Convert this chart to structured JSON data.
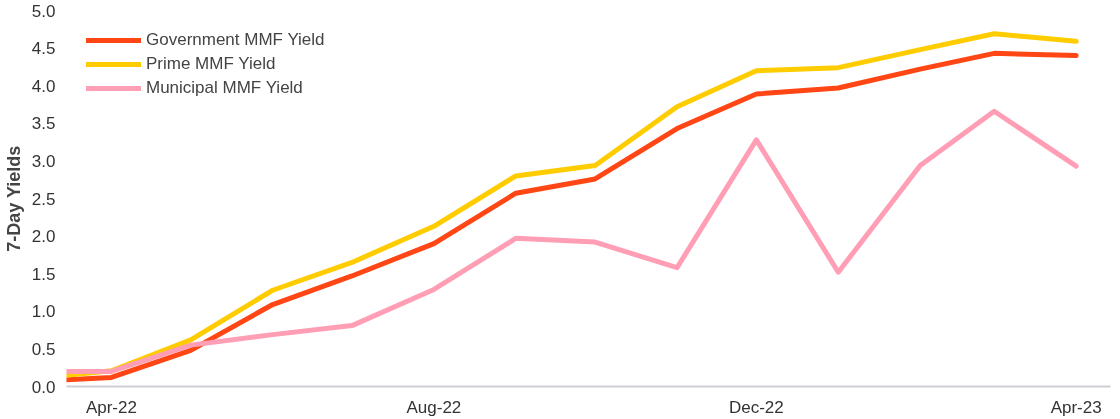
{
  "chart_data": {
    "type": "line",
    "ylabel": "7-Day Yields",
    "x": [
      "2022-03-15",
      "2022-04-01",
      "2022-05-01",
      "2022-06-01",
      "2022-07-01",
      "2022-08-01",
      "2022-09-01",
      "2022-10-01",
      "2022-11-01",
      "2022-12-01",
      "2023-01-01",
      "2023-02-01",
      "2023-03-01",
      "2023-04-01"
    ],
    "series": [
      {
        "name": "Government MMF Yield",
        "color": "#ff4614",
        "values": [
          0.09,
          0.12,
          0.48,
          1.09,
          1.47,
          1.9,
          2.57,
          2.76,
          3.43,
          3.89,
          3.97,
          4.22,
          4.43,
          4.4
        ]
      },
      {
        "name": "Prime MMF Yield",
        "color": "#ffcc00",
        "values": [
          0.15,
          0.21,
          0.62,
          1.28,
          1.65,
          2.13,
          2.8,
          2.94,
          3.72,
          4.2,
          4.24,
          4.48,
          4.69,
          4.59
        ]
      },
      {
        "name": "Municipal MMF Yield",
        "color": "#ff9eb4",
        "values": [
          0.2,
          0.2,
          0.55,
          0.69,
          0.81,
          1.29,
          1.97,
          1.92,
          1.58,
          3.28,
          1.52,
          2.94,
          3.66,
          2.93
        ]
      }
    ],
    "xlim": [
      "2022-03-15",
      "2023-04-14"
    ],
    "xticks": [
      {
        "value": "2022-04-01",
        "label": "Apr-22"
      },
      {
        "value": "2022-08-01",
        "label": "Aug-22"
      },
      {
        "value": "2022-12-01",
        "label": "Dec-22"
      },
      {
        "value": "2023-04-01",
        "label": "Apr-23"
      }
    ],
    "ylim": [
      0,
      5
    ],
    "yticks": [
      {
        "value": 0,
        "label": "0.0"
      },
      {
        "value": 0.5,
        "label": "0.5"
      },
      {
        "value": 1,
        "label": "1.0"
      },
      {
        "value": 1.5,
        "label": "1.5"
      },
      {
        "value": 2,
        "label": "2.0"
      },
      {
        "value": 2.5,
        "label": "2.5"
      },
      {
        "value": 3,
        "label": "3.0"
      },
      {
        "value": 3.5,
        "label": "3.5"
      },
      {
        "value": 4,
        "label": "4.0"
      },
      {
        "value": 4.5,
        "label": "4.5"
      },
      {
        "value": 5,
        "label": "5.0"
      }
    ],
    "grid": false,
    "legend": "top left",
    "marker": "none",
    "line_style": "solid"
  }
}
